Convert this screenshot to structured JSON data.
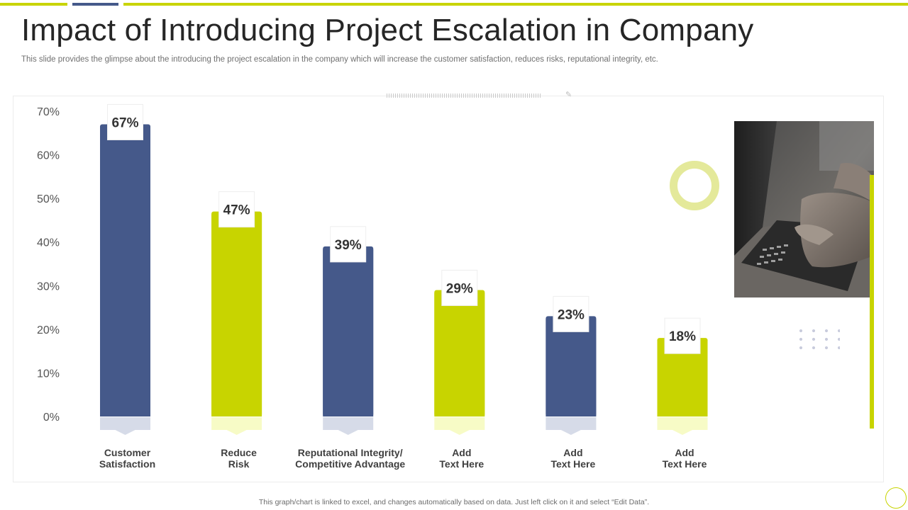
{
  "slide": {
    "title": "Impact of Introducing Project Escalation in Company",
    "subtitle": "This slide provides the glimpse about the introducing the project escalation in the company which will increase the customer satisfaction, reduces risks, reputational integrity, etc.",
    "footer": "This graph/chart is linked to excel, and changes automatically based on data. Just left click on it and select “Edit Data”.",
    "photo_icon": "laptop-typing-photo",
    "pencil_icon": "pencil-icon"
  },
  "colors": {
    "accent": "#c8d400",
    "navy": "#45598a",
    "navy_base": "#d6dbe8",
    "lime_base": "#f7fbc6",
    "axis_text": "#555555",
    "label_text": "#333333"
  },
  "chart_data": {
    "type": "bar",
    "title": "",
    "xlabel": "",
    "ylabel": "",
    "ylim": [
      0,
      70
    ],
    "yticks": [
      0,
      10,
      20,
      30,
      40,
      50,
      60,
      70
    ],
    "ytick_labels": [
      "0%",
      "10%",
      "20%",
      "30%",
      "40%",
      "50%",
      "60%",
      "70%"
    ],
    "categories": [
      [
        "Customer",
        "Satisfaction"
      ],
      [
        "Reduce",
        "Risk"
      ],
      [
        "Reputational Integrity/",
        "Competitive Advantage"
      ],
      [
        "Add",
        "Text Here"
      ],
      [
        "Add",
        "Text Here"
      ],
      [
        "Add",
        "Text Here"
      ]
    ],
    "values": [
      67,
      47,
      39,
      29,
      23,
      18
    ],
    "data_labels": [
      "67%",
      "47%",
      "39%",
      "29%",
      "23%",
      "18%"
    ],
    "bar_colors": [
      "navy",
      "lime",
      "navy",
      "lime",
      "navy",
      "lime"
    ],
    "grid": false
  }
}
